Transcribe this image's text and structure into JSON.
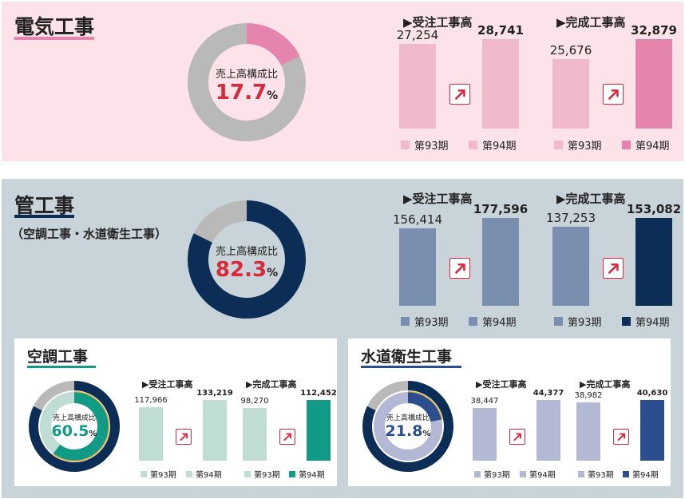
{
  "colors": {
    "elec_pink": "#e584ac",
    "elec_pink_light": "#f0b9cc",
    "gray": "#b9b9b9",
    "pipe_navy": "#0c2d55",
    "pipe_light": "#7a8faf",
    "ac_teal": "#119b87",
    "ac_light": "#bfddd5",
    "water_navy": "#2b4f8e",
    "water_light": "#b3b8d4",
    "arrow_red": "#d8283c",
    "ratio_red": "#d8283c"
  },
  "sections": {
    "electrical": {
      "title": "電気工事",
      "donut": {
        "label": "売上高構成比",
        "value": "17.7",
        "unit": "%"
      },
      "orders": {
        "header": "▶受注工事高"
      },
      "completed": {
        "header": "▶完成工事高"
      }
    },
    "piping": {
      "title": "管工事",
      "note": "（空調工事・水道衛生工事）",
      "donut": {
        "label": "売上高構成比",
        "value": "82.3",
        "unit": "%"
      },
      "orders": {
        "header": "▶受注工事高"
      },
      "completed": {
        "header": "▶完成工事高"
      }
    },
    "air_conditioning": {
      "title": "空調工事",
      "donut": {
        "label": "売上高構成比",
        "value": "60.5",
        "unit": "%"
      },
      "orders": {
        "header": "▶受注工事高"
      },
      "completed": {
        "header": "▶完成工事高"
      }
    },
    "water": {
      "title": "水道衛生工事",
      "donut": {
        "label": "売上高構成比",
        "value": "21.8",
        "unit": "%"
      },
      "orders": {
        "header": "▶受注工事高"
      },
      "completed": {
        "header": "▶完成工事高"
      }
    }
  },
  "legend": {
    "p93": "第93期",
    "p94": "第94期"
  },
  "chart_data": [
    {
      "id": "electrical_ratio",
      "type": "pie",
      "labels": [
        "電気工事",
        ""
      ],
      "values": [
        17.7,
        82.3
      ]
    },
    {
      "id": "electrical_orders",
      "type": "bar",
      "title": "▶受注工事高",
      "categories": [
        "第93期",
        "第94期"
      ],
      "values": [
        27254,
        28741
      ],
      "labels": [
        "27,254",
        "28,741"
      ]
    },
    {
      "id": "electrical_completed",
      "type": "bar",
      "title": "▶完成工事高",
      "categories": [
        "第93期",
        "第94期"
      ],
      "values": [
        25676,
        32879
      ],
      "labels": [
        "25,676",
        "32,879"
      ]
    },
    {
      "id": "piping_ratio",
      "type": "pie",
      "labels": [
        "管工事",
        ""
      ],
      "values": [
        82.3,
        17.7
      ]
    },
    {
      "id": "piping_orders",
      "type": "bar",
      "title": "▶受注工事高",
      "categories": [
        "第93期",
        "第94期"
      ],
      "values": [
        156414,
        177596
      ],
      "labels": [
        "156,414",
        "177,596"
      ]
    },
    {
      "id": "piping_completed",
      "type": "bar",
      "title": "▶完成工事高",
      "categories": [
        "第93期",
        "第94期"
      ],
      "values": [
        137253,
        153082
      ],
      "labels": [
        "137,253",
        "153,082"
      ]
    },
    {
      "id": "ac_ratio",
      "type": "pie",
      "labels": [
        "空調工事",
        ""
      ],
      "values": [
        60.5,
        39.5
      ]
    },
    {
      "id": "ac_orders",
      "type": "bar",
      "title": "▶受注工事高",
      "categories": [
        "第93期",
        "第94期"
      ],
      "values": [
        117966,
        133219
      ],
      "labels": [
        "117,966",
        "133,219"
      ]
    },
    {
      "id": "ac_completed",
      "type": "bar",
      "title": "▶完成工事高",
      "categories": [
        "第93期",
        "第94期"
      ],
      "values": [
        98270,
        112452
      ],
      "labels": [
        "98,270",
        "112,452"
      ]
    },
    {
      "id": "water_ratio",
      "type": "pie",
      "labels": [
        "水道衛生工事",
        ""
      ],
      "values": [
        21.8,
        78.2
      ]
    },
    {
      "id": "water_orders",
      "type": "bar",
      "title": "▶受注工事高",
      "categories": [
        "第93期",
        "第94期"
      ],
      "values": [
        38447,
        44377
      ],
      "labels": [
        "38,447",
        "44,377"
      ]
    },
    {
      "id": "water_completed",
      "type": "bar",
      "title": "▶完成工事高",
      "categories": [
        "第93期",
        "第94期"
      ],
      "values": [
        38982,
        40630
      ],
      "labels": [
        "38,982",
        "40,630"
      ]
    }
  ]
}
